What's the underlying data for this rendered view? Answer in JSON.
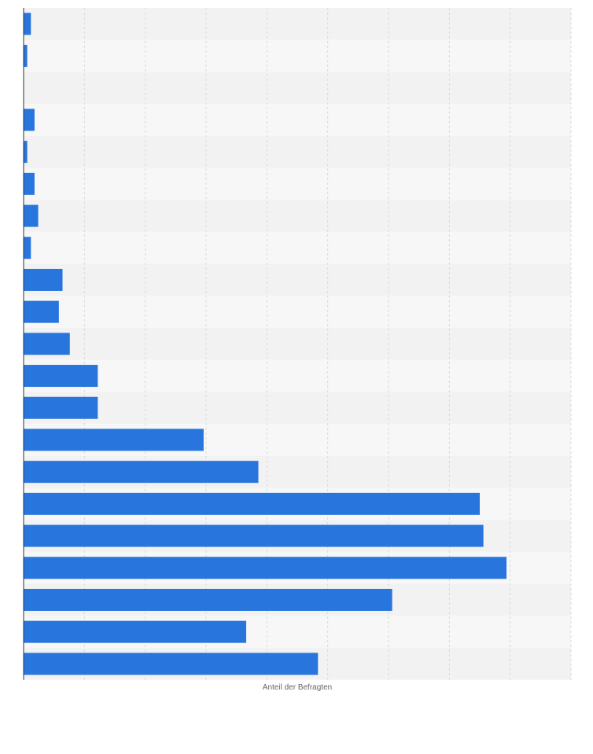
{
  "chart_data": {
    "type": "bar",
    "orientation": "horizontal",
    "xlabel": "Anteil der Befragten",
    "ylabel": "",
    "title": "",
    "xlim": [
      0,
      45
    ],
    "grid": true,
    "categories": [
      "",
      "",
      "",
      "",
      "",
      "",
      "",
      "",
      "",
      "",
      "",
      "",
      "",
      "",
      "",
      "",
      "",
      "",
      "",
      "",
      ""
    ],
    "values": [
      0.6,
      0.3,
      0.0,
      0.9,
      0.3,
      0.9,
      1.2,
      0.6,
      3.2,
      2.9,
      3.8,
      6.1,
      6.1,
      14.8,
      19.3,
      37.5,
      37.8,
      39.7,
      30.3,
      18.3,
      24.2
    ],
    "colors": {
      "bar": "#2876dd",
      "band_a": "#f2f2f2",
      "band_b": "#f7f7f7",
      "grid": "#d9d9d9",
      "axis": "#333333"
    }
  }
}
